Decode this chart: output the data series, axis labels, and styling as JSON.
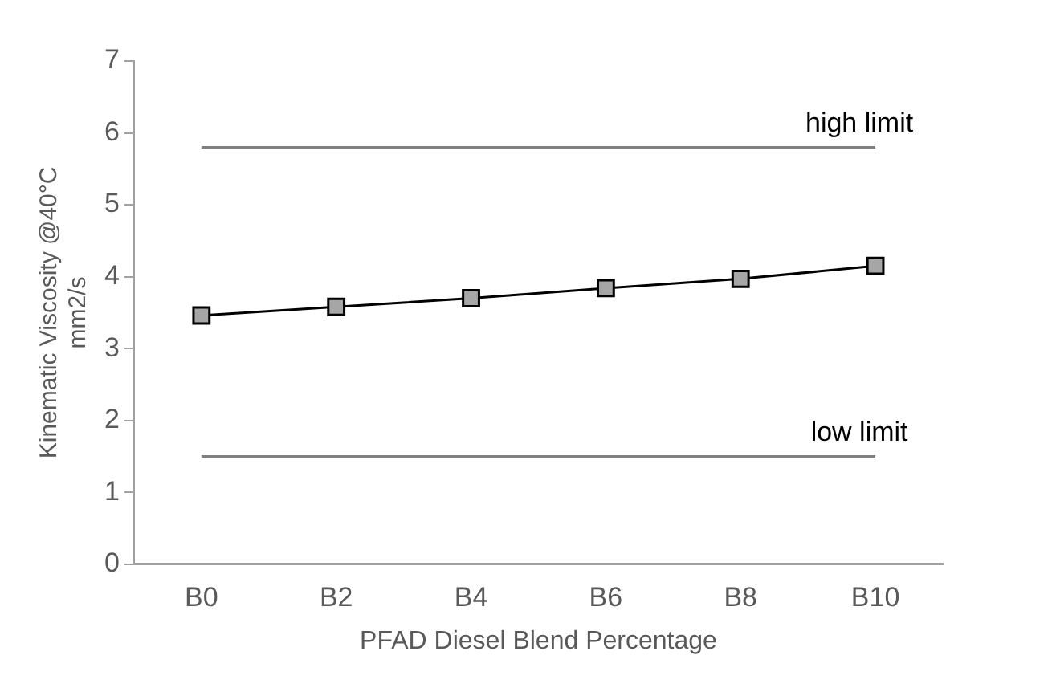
{
  "chart_data": {
    "type": "line",
    "xlabel": "PFAD Diesel Blend Percentage",
    "ylabel": "Kinematic Viscosity @40°C mm2/s",
    "categories": [
      "B0",
      "B2",
      "B4",
      "B6",
      "B8",
      "B10"
    ],
    "series": [
      {
        "color": "#a6a6a6",
        "values": [
          3.46,
          3.58,
          3.7,
          3.84,
          3.97,
          4.15
        ]
      }
    ],
    "ylim": [
      0,
      7
    ],
    "yticks": [
      0,
      1,
      2,
      3,
      4,
      5,
      6,
      7
    ],
    "grid": false,
    "legend": false,
    "marker": "square",
    "line_style": "solid",
    "ref_lines": [
      {
        "axis": "y",
        "value": 5.8,
        "label": "high limit",
        "color": "#808080"
      },
      {
        "axis": "y",
        "value": 1.5,
        "label": "low limit",
        "color": "#808080"
      }
    ]
  }
}
